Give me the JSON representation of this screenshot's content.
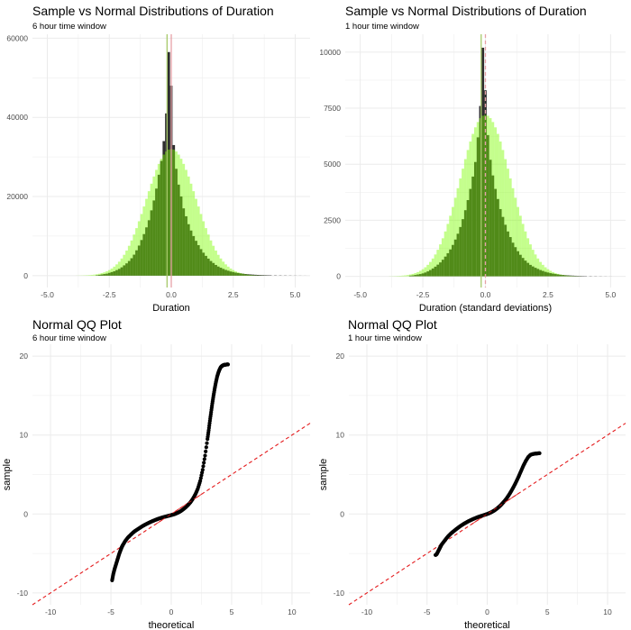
{
  "colors": {
    "panel_bg": "#ffffff",
    "grid": "#ebebeb",
    "sample_fill": "#2e2e2e",
    "normal_fill": "#7cfc00",
    "normal_alpha": 0.45,
    "mean_line": "#e6a1a7",
    "median_line": "#a7c96b",
    "qq_points": "#000000",
    "qq_line": "#e41a1c"
  },
  "chart_data": [
    {
      "type": "bar",
      "title": "Sample vs Normal Distributions of Duration",
      "subtitle": "6 hour time window",
      "xlabel": "Duration",
      "ylabel": "",
      "xlim": [
        -5.6,
        5.6
      ],
      "ylim": [
        -3000,
        61000
      ],
      "x_ticks": [
        -5.0,
        -2.5,
        0.0,
        2.5,
        5.0
      ],
      "x_tick_labels": [
        "-5.0",
        "-2.5",
        "0.0",
        "2.5",
        "5.0"
      ],
      "y_ticks": [
        0,
        20000,
        40000,
        60000
      ],
      "y_tick_labels": [
        "0",
        "20000",
        "40000",
        "60000"
      ],
      "grid": true,
      "series": [
        {
          "name": "",
          "kind": "sample_histogram",
          "bin_width": 0.1,
          "x": [
            -3.0,
            -2.9,
            -2.8,
            -2.7,
            -2.6,
            -2.5,
            -2.4,
            -2.3,
            -2.2,
            -2.1,
            -2.0,
            -1.9,
            -1.8,
            -1.7,
            -1.6,
            -1.5,
            -1.4,
            -1.3,
            -1.2,
            -1.1,
            -1.0,
            -0.9,
            -0.8,
            -0.7,
            -0.6,
            -0.5,
            -0.4,
            -0.3,
            -0.2,
            -0.1,
            0.0,
            0.1,
            0.2,
            0.3,
            0.4,
            0.5,
            0.6,
            0.7,
            0.8,
            0.9,
            1.0,
            1.1,
            1.2,
            1.3,
            1.4,
            1.5,
            1.6,
            1.7,
            1.8,
            1.9,
            2.0,
            2.1,
            2.2,
            2.3,
            2.4,
            2.5,
            2.6,
            2.7,
            2.8,
            2.9,
            3.0,
            3.1,
            3.2,
            3.3,
            3.4,
            3.5,
            3.6,
            3.7,
            3.8,
            3.9,
            4.0,
            4.2,
            4.4,
            4.6,
            4.8,
            5.0,
            5.2,
            5.4
          ],
          "values": [
            100,
            200,
            300,
            400,
            500,
            700,
            900,
            1100,
            1400,
            1700,
            2100,
            2600,
            3100,
            3700,
            4400,
            5300,
            6400,
            7600,
            9000,
            10500,
            12200,
            14000,
            16500,
            19000,
            22000,
            25500,
            29000,
            34000,
            41000,
            56500,
            48000,
            33000,
            27000,
            23000,
            20000,
            17000,
            15000,
            13000,
            11400,
            10000,
            8800,
            7700,
            6700,
            5800,
            5000,
            4300,
            3700,
            3200,
            2700,
            2300,
            2000,
            1700,
            1450,
            1250,
            1050,
            900,
            760,
            650,
            560,
            480,
            410,
            350,
            300,
            260,
            220,
            190,
            160,
            140,
            120,
            100,
            90,
            70,
            60,
            50,
            40,
            30,
            20,
            10
          ]
        },
        {
          "name": "",
          "kind": "normal_density",
          "mean": 0.0,
          "sd": 1.0,
          "peak": 32000,
          "x_range": [
            -3.8,
            3.8
          ]
        }
      ],
      "vlines": [
        {
          "x": -0.17,
          "kind": "median"
        },
        {
          "x": 0.0,
          "kind": "mean"
        }
      ]
    },
    {
      "type": "bar",
      "title": "Sample vs Normal Distributions of Duration",
      "subtitle": "1 hour time window",
      "xlabel": "Duration (standard deviations)",
      "ylabel": "",
      "xlim": [
        -5.6,
        5.6
      ],
      "ylim": [
        -500,
        10800
      ],
      "x_ticks": [
        -5.0,
        -2.5,
        0.0,
        2.5,
        5.0
      ],
      "x_tick_labels": [
        "-5.0",
        "-2.5",
        "0.0",
        "2.5",
        "5.0"
      ],
      "y_ticks": [
        0,
        2500,
        5000,
        7500,
        10000
      ],
      "y_tick_labels": [
        "0",
        "2500",
        "5000",
        "7500",
        "10000"
      ],
      "grid": true,
      "series": [
        {
          "name": "",
          "kind": "sample_histogram",
          "bin_width": 0.1,
          "x": [
            -3.0,
            -2.9,
            -2.8,
            -2.7,
            -2.6,
            -2.5,
            -2.4,
            -2.3,
            -2.2,
            -2.1,
            -2.0,
            -1.9,
            -1.8,
            -1.7,
            -1.6,
            -1.5,
            -1.4,
            -1.3,
            -1.2,
            -1.1,
            -1.0,
            -0.9,
            -0.8,
            -0.7,
            -0.6,
            -0.5,
            -0.4,
            -0.3,
            -0.2,
            -0.1,
            0.0,
            0.1,
            0.2,
            0.3,
            0.4,
            0.5,
            0.6,
            0.7,
            0.8,
            0.9,
            1.0,
            1.1,
            1.2,
            1.3,
            1.4,
            1.5,
            1.6,
            1.7,
            1.8,
            1.9,
            2.0,
            2.1,
            2.2,
            2.3,
            2.4,
            2.5,
            2.6,
            2.7,
            2.8,
            2.9,
            3.0,
            3.1,
            3.2,
            3.3,
            3.4,
            3.5,
            3.6,
            3.7,
            3.8,
            3.9,
            4.0,
            4.2,
            4.4,
            4.6,
            4.8,
            5.0
          ],
          "values": [
            30,
            40,
            60,
            80,
            100,
            130,
            170,
            220,
            280,
            350,
            430,
            520,
            620,
            740,
            880,
            1030,
            1200,
            1400,
            1640,
            1900,
            2200,
            2550,
            2950,
            3400,
            3900,
            4450,
            5100,
            6200,
            7600,
            10200,
            8300,
            6300,
            5200,
            4500,
            3900,
            3450,
            3000,
            2650,
            2300,
            2000,
            1750,
            1500,
            1300,
            1120,
            960,
            820,
            700,
            600,
            510,
            440,
            380,
            330,
            280,
            240,
            200,
            170,
            140,
            120,
            100,
            85,
            70,
            60,
            50,
            42,
            35,
            30,
            25,
            20,
            17,
            14,
            12,
            9,
            7,
            5,
            3,
            2
          ]
        },
        {
          "name": "",
          "kind": "normal_density",
          "mean": 0.0,
          "sd": 1.0,
          "peak": 7200,
          "x_range": [
            -3.8,
            3.8
          ]
        }
      ],
      "vlines": [
        {
          "x": -0.17,
          "kind": "median"
        },
        {
          "x": 0.0,
          "kind": "mean"
        }
      ]
    },
    {
      "type": "scatter",
      "title": "Normal QQ Plot",
      "subtitle": "6 hour time window",
      "xlabel": "theoretical",
      "ylabel": "sample",
      "xlim": [
        -11.5,
        11.5
      ],
      "ylim": [
        -11.5,
        21.5
      ],
      "x_ticks": [
        -10,
        -5,
        0,
        5,
        10
      ],
      "x_tick_labels": [
        "-10",
        "-5",
        "0",
        "5",
        "10"
      ],
      "y_ticks": [
        -10,
        0,
        10,
        20
      ],
      "y_tick_labels": [
        "-10",
        "0",
        "10",
        "20"
      ],
      "grid": true,
      "reference_line": {
        "intercept": 0,
        "slope": 1
      },
      "series": [
        {
          "name": "",
          "kind": "qq_points",
          "x": [
            -4.9,
            -4.8,
            -4.7,
            -4.6,
            -4.5,
            -4.4,
            -4.3,
            -4.2,
            -4.1,
            -4.0,
            -3.8,
            -3.6,
            -3.4,
            -3.2,
            -3.0,
            -2.8,
            -2.6,
            -2.4,
            -2.2,
            -2.0,
            -1.8,
            -1.6,
            -1.4,
            -1.2,
            -1.0,
            -0.8,
            -0.6,
            -0.4,
            -0.2,
            0.0,
            0.2,
            0.4,
            0.6,
            0.8,
            1.0,
            1.2,
            1.4,
            1.6,
            1.8,
            2.0,
            2.2,
            2.4,
            2.6,
            2.8,
            3.0,
            3.1,
            3.2,
            3.3,
            3.4,
            3.5,
            3.6,
            3.7,
            3.8,
            3.9,
            4.0,
            4.1,
            4.2,
            4.3,
            4.4,
            4.5,
            4.6,
            4.7
          ],
          "values": [
            -8.4,
            -7.6,
            -7.0,
            -6.5,
            -6.0,
            -5.5,
            -5.0,
            -4.6,
            -4.2,
            -3.9,
            -3.4,
            -3.0,
            -2.7,
            -2.4,
            -2.15,
            -1.95,
            -1.75,
            -1.55,
            -1.38,
            -1.22,
            -1.07,
            -0.93,
            -0.8,
            -0.68,
            -0.57,
            -0.47,
            -0.38,
            -0.3,
            -0.22,
            -0.14,
            -0.05,
            0.06,
            0.2,
            0.38,
            0.6,
            0.85,
            1.15,
            1.5,
            1.95,
            2.5,
            3.2,
            4.2,
            5.6,
            7.4,
            9.5,
            10.6,
            11.8,
            12.9,
            14.0,
            15.0,
            15.9,
            16.7,
            17.4,
            17.9,
            18.3,
            18.6,
            18.75,
            18.85,
            18.9,
            18.92,
            18.94,
            18.95
          ]
        }
      ]
    },
    {
      "type": "scatter",
      "title": "Normal QQ Plot",
      "subtitle": "1 hour time window",
      "xlabel": "theoretical",
      "ylabel": "sample",
      "xlim": [
        -11.5,
        11.5
      ],
      "ylim": [
        -11.5,
        21.5
      ],
      "x_ticks": [
        -10,
        -5,
        0,
        5,
        10
      ],
      "x_tick_labels": [
        "-10",
        "-5",
        "0",
        "5",
        "10"
      ],
      "y_ticks": [
        -10,
        0,
        10,
        20
      ],
      "y_tick_labels": [
        "-10",
        "0",
        "10",
        "20"
      ],
      "grid": true,
      "reference_line": {
        "intercept": 0,
        "slope": 1
      },
      "series": [
        {
          "name": "",
          "kind": "qq_points",
          "x": [
            -4.3,
            -4.2,
            -4.1,
            -4.0,
            -3.9,
            -3.8,
            -3.6,
            -3.4,
            -3.2,
            -3.0,
            -2.8,
            -2.6,
            -2.4,
            -2.2,
            -2.0,
            -1.8,
            -1.6,
            -1.4,
            -1.2,
            -1.0,
            -0.8,
            -0.6,
            -0.4,
            -0.2,
            0.0,
            0.2,
            0.4,
            0.6,
            0.8,
            1.0,
            1.2,
            1.4,
            1.6,
            1.8,
            2.0,
            2.2,
            2.4,
            2.6,
            2.8,
            3.0,
            3.2,
            3.4,
            3.6,
            3.8,
            4.0,
            4.2,
            4.35
          ],
          "values": [
            -5.2,
            -5.1,
            -4.8,
            -4.5,
            -4.2,
            -3.9,
            -3.5,
            -3.1,
            -2.75,
            -2.45,
            -2.2,
            -1.95,
            -1.72,
            -1.5,
            -1.3,
            -1.12,
            -0.95,
            -0.8,
            -0.66,
            -0.53,
            -0.41,
            -0.3,
            -0.2,
            -0.1,
            0.0,
            0.12,
            0.27,
            0.45,
            0.67,
            0.93,
            1.23,
            1.57,
            1.95,
            2.4,
            2.9,
            3.45,
            4.05,
            4.7,
            5.4,
            6.1,
            6.7,
            7.2,
            7.5,
            7.6,
            7.65,
            7.68,
            7.7
          ]
        }
      ]
    }
  ]
}
